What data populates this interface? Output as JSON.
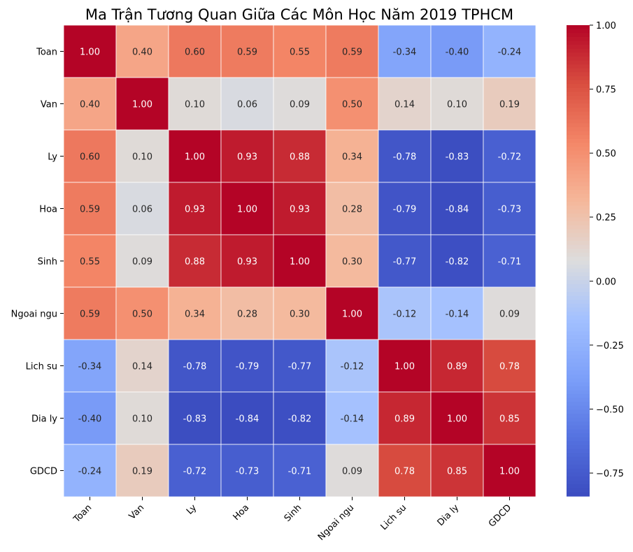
{
  "chart_data": {
    "type": "heatmap",
    "title": "Ma Trận Tương Quan Giữa Các Môn Học Năm 2019 TPHCM",
    "xlabel": "",
    "ylabel": "",
    "categories": [
      "Toan",
      "Van",
      "Ly",
      "Hoa",
      "Sinh",
      "Ngoai ngu",
      "Lich su",
      "Dia ly",
      "GDCD"
    ],
    "matrix": [
      [
        1.0,
        0.4,
        0.6,
        0.59,
        0.55,
        0.59,
        -0.34,
        -0.4,
        -0.24
      ],
      [
        0.4,
        1.0,
        0.1,
        0.06,
        0.09,
        0.5,
        0.14,
        0.1,
        0.19
      ],
      [
        0.6,
        0.1,
        1.0,
        0.93,
        0.88,
        0.34,
        -0.78,
        -0.83,
        -0.72
      ],
      [
        0.59,
        0.06,
        0.93,
        1.0,
        0.93,
        0.28,
        -0.79,
        -0.84,
        -0.73
      ],
      [
        0.55,
        0.09,
        0.88,
        0.93,
        1.0,
        0.3,
        -0.77,
        -0.82,
        -0.71
      ],
      [
        0.59,
        0.5,
        0.34,
        0.28,
        0.3,
        1.0,
        -0.12,
        -0.14,
        0.09
      ],
      [
        -0.34,
        0.14,
        -0.78,
        -0.79,
        -0.77,
        -0.12,
        1.0,
        0.89,
        0.78
      ],
      [
        -0.4,
        0.1,
        -0.83,
        -0.84,
        -0.82,
        -0.14,
        0.89,
        1.0,
        0.85
      ],
      [
        -0.24,
        0.19,
        -0.72,
        -0.73,
        -0.71,
        0.09,
        0.78,
        0.85,
        1.0
      ]
    ],
    "colormap": "coolwarm",
    "value_range": [
      -0.84,
      1.0
    ],
    "colorbar_ticks": [
      1.0,
      0.75,
      0.5,
      0.25,
      0.0,
      -0.25,
      -0.5,
      -0.75
    ],
    "colorbar_tick_labels": [
      "1.00",
      "0.75",
      "0.50",
      "0.25",
      "0.00",
      "−0.25",
      "−0.50",
      "−0.75"
    ],
    "legend": "colorbar-right",
    "grid": false
  }
}
